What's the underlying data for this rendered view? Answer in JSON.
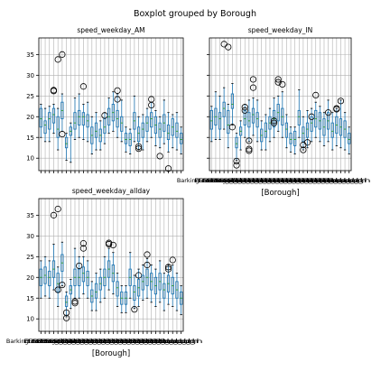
{
  "chart_data": {
    "suptitle": "Boxplot grouped by Borough",
    "type": "boxplot",
    "xlabel": "[Borough]",
    "first_category": "Barking and Dagenham",
    "ylim": [
      7,
      39
    ],
    "yticks": [
      10,
      15,
      20,
      25,
      30,
      35
    ],
    "grid": true,
    "box_color": "#1f77b4",
    "median_color": "#2ca02c",
    "panels": [
      {
        "title": "speed_weekday_AM",
        "show_xlabel": false,
        "boxes": [
          {
            "q1": 17.5,
            "median": 19.5,
            "q3": 22,
            "wlo": 15,
            "whi": 23,
            "fliers": []
          },
          {
            "q1": 16,
            "median": 18,
            "q3": 19,
            "wlo": 14,
            "whi": 22,
            "fliers": []
          },
          {
            "q1": 17,
            "median": 19.5,
            "q3": 21,
            "wlo": 14,
            "whi": 22.5,
            "fliers": []
          },
          {
            "q1": 18.5,
            "median": 20.5,
            "q3": 22,
            "wlo": 16,
            "whi": 23,
            "fliers": [
              26.2,
              26.4
            ]
          },
          {
            "q1": 15,
            "median": 17,
            "q3": 20,
            "wlo": 12,
            "whi": 22,
            "fliers": [
              33.8
            ]
          },
          {
            "q1": 19.5,
            "median": 21.5,
            "q3": 23.5,
            "wlo": 16.5,
            "whi": 25.5,
            "fliers": [
              35,
              15.8
            ]
          },
          {
            "q1": 12.5,
            "median": 13.5,
            "q3": 15,
            "wlo": 9.5,
            "whi": 16,
            "fliers": []
          },
          {
            "q1": 15.5,
            "median": 16.5,
            "q3": 17.5,
            "wlo": 9,
            "whi": 18.5,
            "fliers": []
          },
          {
            "q1": 17,
            "median": 18.5,
            "q3": 21,
            "wlo": 14.5,
            "whi": 24.5,
            "fliers": []
          },
          {
            "q1": 18,
            "median": 20,
            "q3": 21.5,
            "wlo": 15,
            "whi": 25.5,
            "fliers": []
          },
          {
            "q1": 18,
            "median": 20,
            "q3": 21,
            "wlo": 14.5,
            "whi": 23,
            "fliers": [
              27.3
            ]
          },
          {
            "q1": 17.5,
            "median": 19,
            "q3": 20.5,
            "wlo": 14,
            "whi": 23.5,
            "fliers": []
          },
          {
            "q1": 13.5,
            "median": 15.5,
            "q3": 17.5,
            "wlo": 11,
            "whi": 20,
            "fliers": []
          },
          {
            "q1": 15,
            "median": 16.5,
            "q3": 18.5,
            "wlo": 12,
            "whi": 21,
            "fliers": []
          },
          {
            "q1": 14,
            "median": 15.5,
            "q3": 17,
            "wlo": 12,
            "whi": 19,
            "fliers": []
          },
          {
            "q1": 16,
            "median": 17.5,
            "q3": 19.5,
            "wlo": 13.5,
            "whi": 21,
            "fliers": [
              20.3
            ]
          },
          {
            "q1": 18,
            "median": 20,
            "q3": 22,
            "wlo": 16,
            "whi": 24.5,
            "fliers": []
          },
          {
            "q1": 19,
            "median": 21,
            "q3": 23,
            "wlo": 16.5,
            "whi": 26,
            "fliers": []
          },
          {
            "q1": 17.5,
            "median": 19.5,
            "q3": 21.5,
            "wlo": 15,
            "whi": 25.5,
            "fliers": [
              24.2,
              26.3
            ]
          },
          {
            "q1": 16.5,
            "median": 18.5,
            "q3": 20,
            "wlo": 14,
            "whi": 24,
            "fliers": []
          },
          {
            "q1": 13.5,
            "median": 14.5,
            "q3": 16,
            "wlo": 11.5,
            "whi": 17.5,
            "fliers": []
          },
          {
            "q1": 13,
            "median": 14.5,
            "q3": 16,
            "wlo": 11,
            "whi": 17,
            "fliers": []
          },
          {
            "q1": 17,
            "median": 19,
            "q3": 21,
            "wlo": 14,
            "whi": 25,
            "fliers": []
          },
          {
            "q1": 14,
            "median": 16,
            "q3": 17.5,
            "wlo": 12,
            "whi": 20,
            "fliers": [
              12.3,
              12.8
            ]
          },
          {
            "q1": 15,
            "median": 17,
            "q3": 18.5,
            "wlo": 12,
            "whi": 20.5,
            "fliers": []
          },
          {
            "q1": 16.5,
            "median": 18.5,
            "q3": 20,
            "wlo": 14,
            "whi": 22,
            "fliers": []
          },
          {
            "q1": 17.5,
            "median": 19.5,
            "q3": 21,
            "wlo": 15,
            "whi": 23.5,
            "fliers": [
              24.2,
              22.8
            ]
          },
          {
            "q1": 16,
            "median": 18,
            "q3": 20,
            "wlo": 13,
            "whi": 21.5,
            "fliers": []
          },
          {
            "q1": 15,
            "median": 17,
            "q3": 18.5,
            "wlo": 12.5,
            "whi": 20,
            "fliers": [
              10.5
            ]
          },
          {
            "q1": 16.5,
            "median": 18.5,
            "q3": 20.5,
            "wlo": 13.5,
            "whi": 24,
            "fliers": []
          },
          {
            "q1": 14.5,
            "median": 16,
            "q3": 18,
            "wlo": 11.5,
            "whi": 21,
            "fliers": [
              7.5
            ]
          },
          {
            "q1": 15.5,
            "median": 17.5,
            "q3": 19.5,
            "wlo": 12.5,
            "whi": 20.5,
            "fliers": []
          },
          {
            "q1": 15,
            "median": 16.5,
            "q3": 18.5,
            "wlo": 12,
            "whi": 21,
            "fliers": []
          },
          {
            "q1": 13.5,
            "median": 14.5,
            "q3": 16,
            "wlo": 11,
            "whi": 17.5,
            "fliers": []
          }
        ]
      },
      {
        "title": "speed_weekday_IN",
        "show_xlabel": true,
        "boxes": [
          {
            "q1": 17,
            "median": 19,
            "q3": 21.5,
            "wlo": 14,
            "whi": 22.5,
            "fliers": []
          },
          {
            "q1": 18,
            "median": 20,
            "q3": 22,
            "wlo": 14.5,
            "whi": 26,
            "fliers": []
          },
          {
            "q1": 17,
            "median": 19.5,
            "q3": 21,
            "wlo": 14.5,
            "whi": 25,
            "fliers": []
          },
          {
            "q1": 20,
            "median": 22,
            "q3": 23.5,
            "wlo": 17,
            "whi": 27,
            "fliers": [
              37.5
            ]
          },
          {
            "q1": 16,
            "median": 18,
            "q3": 21.5,
            "wlo": 12.5,
            "whi": 23,
            "fliers": [
              36.8
            ]
          },
          {
            "q1": 22,
            "median": 23,
            "q3": 25.5,
            "wlo": 18,
            "whi": 28,
            "fliers": [
              17.5
            ]
          },
          {
            "q1": 12.5,
            "median": 13.5,
            "q3": 15,
            "wlo": 9.5,
            "whi": 16,
            "fliers": [
              9.3,
              8.3
            ]
          },
          {
            "q1": 15.5,
            "median": 16.5,
            "q3": 17.5,
            "wlo": 12,
            "whi": 19,
            "fliers": []
          },
          {
            "q1": 18,
            "median": 19.5,
            "q3": 21.5,
            "wlo": 15,
            "whi": 23,
            "fliers": [
              21.5,
              22.3
            ]
          },
          {
            "q1": 17.5,
            "median": 19,
            "q3": 21,
            "wlo": 14,
            "whi": 24,
            "fliers": [
              12.2,
              11.8,
              14.2
            ]
          },
          {
            "q1": 18.5,
            "median": 20.5,
            "q3": 22,
            "wlo": 15.5,
            "whi": 24.5,
            "fliers": [
              29,
              27
            ]
          },
          {
            "q1": 17.5,
            "median": 19.5,
            "q3": 21,
            "wlo": 14,
            "whi": 24,
            "fliers": []
          },
          {
            "q1": 14,
            "median": 15.5,
            "q3": 17,
            "wlo": 12,
            "whi": 19,
            "fliers": []
          },
          {
            "q1": 15,
            "median": 16.5,
            "q3": 18.5,
            "wlo": 12,
            "whi": 20.5,
            "fliers": []
          },
          {
            "q1": 17,
            "median": 18.5,
            "q3": 20,
            "wlo": 14,
            "whi": 22,
            "fliers": []
          },
          {
            "q1": 17.5,
            "median": 19.5,
            "q3": 21.5,
            "wlo": 15,
            "whi": 24.5,
            "fliers": [
              18.5,
              19
            ]
          },
          {
            "q1": 19,
            "median": 21,
            "q3": 23,
            "wlo": 16.5,
            "whi": 25,
            "fliers": [
              29,
              28.3
            ]
          },
          {
            "q1": 18,
            "median": 20,
            "q3": 22,
            "wlo": 15,
            "whi": 26,
            "fliers": [
              27.8
            ]
          },
          {
            "q1": 15,
            "median": 17,
            "q3": 18.5,
            "wlo": 12.5,
            "whi": 20.5,
            "fliers": []
          },
          {
            "q1": 13.5,
            "median": 14.5,
            "q3": 16,
            "wlo": 11.5,
            "whi": 17.5,
            "fliers": []
          },
          {
            "q1": 13,
            "median": 14.5,
            "q3": 16.5,
            "wlo": 11,
            "whi": 17.5,
            "fliers": []
          },
          {
            "q1": 18,
            "median": 20,
            "q3": 21.5,
            "wlo": 15,
            "whi": 26.5,
            "fliers": []
          },
          {
            "q1": 14,
            "median": 16,
            "q3": 17.5,
            "wlo": 12,
            "whi": 20,
            "fliers": [
              12,
              13.2
            ]
          },
          {
            "q1": 15,
            "median": 17,
            "q3": 18.5,
            "wlo": 12.5,
            "whi": 21.5,
            "fliers": [
              13.8
            ]
          },
          {
            "q1": 16.5,
            "median": 18.5,
            "q3": 20,
            "wlo": 14,
            "whi": 22,
            "fliers": [
              20
            ]
          },
          {
            "q1": 17.5,
            "median": 19.5,
            "q3": 21.5,
            "wlo": 15,
            "whi": 23.5,
            "fliers": [
              25.2
            ]
          },
          {
            "q1": 17,
            "median": 19,
            "q3": 21,
            "wlo": 14,
            "whi": 22.5,
            "fliers": []
          },
          {
            "q1": 15.5,
            "median": 17.5,
            "q3": 19.5,
            "wlo": 13,
            "whi": 21,
            "fliers": []
          },
          {
            "q1": 17,
            "median": 19,
            "q3": 21,
            "wlo": 14,
            "whi": 24,
            "fliers": [
              21
            ]
          },
          {
            "q1": 15,
            "median": 16.5,
            "q3": 18.5,
            "wlo": 12,
            "whi": 21,
            "fliers": []
          },
          {
            "q1": 16,
            "median": 18,
            "q3": 20,
            "wlo": 13,
            "whi": 22,
            "fliers": [
              21.8,
              22
            ]
          },
          {
            "q1": 15.5,
            "median": 17.5,
            "q3": 19.5,
            "wlo": 12.5,
            "whi": 24,
            "fliers": [
              23.8
            ]
          },
          {
            "q1": 15,
            "median": 17,
            "q3": 19,
            "wlo": 12,
            "whi": 21,
            "fliers": []
          },
          {
            "q1": 13.5,
            "median": 14.5,
            "q3": 16,
            "wlo": 11,
            "whi": 17.5,
            "fliers": []
          }
        ]
      },
      {
        "title": "speed_weekday_allday",
        "show_xlabel": true,
        "boxes": [
          {
            "q1": 18,
            "median": 20,
            "q3": 22,
            "wlo": 15,
            "whi": 24,
            "fliers": []
          },
          {
            "q1": 18.5,
            "median": 20.5,
            "q3": 22.5,
            "wlo": 15.5,
            "whi": 25,
            "fliers": []
          },
          {
            "q1": 18,
            "median": 20,
            "q3": 21.5,
            "wlo": 15,
            "whi": 24,
            "fliers": []
          },
          {
            "q1": 20,
            "median": 22,
            "q3": 24,
            "wlo": 17,
            "whi": 28,
            "fliers": [
              35
            ]
          },
          {
            "q1": 16.5,
            "median": 18.5,
            "q3": 21,
            "wlo": 13,
            "whi": 22.5,
            "fliers": [
              36.5,
              17
            ]
          },
          {
            "q1": 21.5,
            "median": 23.5,
            "q3": 25.5,
            "wlo": 18,
            "whi": 28.5,
            "fliers": [
              18.2
            ]
          },
          {
            "q1": 13,
            "median": 14,
            "q3": 15.5,
            "wlo": 10.5,
            "whi": 16.5,
            "fliers": [
              11.5,
              10.2
            ]
          },
          {
            "q1": 16,
            "median": 17,
            "q3": 18,
            "wlo": 12.5,
            "whi": 19.5,
            "fliers": []
          },
          {
            "q1": 18,
            "median": 20,
            "q3": 22,
            "wlo": 15,
            "whi": 27,
            "fliers": [
              13.8,
              14.2
            ]
          },
          {
            "q1": 18,
            "median": 20,
            "q3": 22,
            "wlo": 15,
            "whi": 25,
            "fliers": [
              22.8
            ]
          },
          {
            "q1": 19,
            "median": 21,
            "q3": 22.5,
            "wlo": 16,
            "whi": 25,
            "fliers": [
              28.2,
              27
            ]
          },
          {
            "q1": 18,
            "median": 20,
            "q3": 21.5,
            "wlo": 15,
            "whi": 24,
            "fliers": []
          },
          {
            "q1": 14,
            "median": 15.5,
            "q3": 17,
            "wlo": 12,
            "whi": 19,
            "fliers": []
          },
          {
            "q1": 15,
            "median": 16.5,
            "q3": 18.5,
            "wlo": 12,
            "whi": 21,
            "fliers": []
          },
          {
            "q1": 17,
            "median": 18.5,
            "q3": 20,
            "wlo": 14,
            "whi": 22,
            "fliers": []
          },
          {
            "q1": 18,
            "median": 20,
            "q3": 22,
            "wlo": 15,
            "whi": 25,
            "fliers": []
          },
          {
            "q1": 20,
            "median": 22,
            "q3": 24,
            "wlo": 17,
            "whi": 27,
            "fliers": [
              28.3,
              28
            ]
          },
          {
            "q1": 19,
            "median": 21,
            "q3": 23,
            "wlo": 16,
            "whi": 26,
            "fliers": [
              27.8
            ]
          },
          {
            "q1": 15.5,
            "median": 17.5,
            "q3": 19,
            "wlo": 13,
            "whi": 21,
            "fliers": []
          },
          {
            "q1": 13.5,
            "median": 15,
            "q3": 16.5,
            "wlo": 11.5,
            "whi": 18,
            "fliers": []
          },
          {
            "q1": 13.5,
            "median": 15,
            "q3": 16.5,
            "wlo": 11.5,
            "whi": 18,
            "fliers": []
          },
          {
            "q1": 18,
            "median": 20,
            "q3": 22,
            "wlo": 15,
            "whi": 26,
            "fliers": []
          },
          {
            "q1": 14.5,
            "median": 16.5,
            "q3": 18,
            "wlo": 12.5,
            "whi": 20.5,
            "fliers": [
              12.3
            ]
          },
          {
            "q1": 15.5,
            "median": 17.5,
            "q3": 19.5,
            "wlo": 13,
            "whi": 22,
            "fliers": [
              20.5
            ]
          },
          {
            "q1": 17,
            "median": 19,
            "q3": 20.5,
            "wlo": 14.5,
            "whi": 23,
            "fliers": []
          },
          {
            "q1": 18,
            "median": 20,
            "q3": 22,
            "wlo": 15,
            "whi": 24.5,
            "fliers": [
              25.5,
              23
            ]
          },
          {
            "q1": 17,
            "median": 19,
            "q3": 21,
            "wlo": 14,
            "whi": 23,
            "fliers": []
          },
          {
            "q1": 16,
            "median": 18,
            "q3": 20,
            "wlo": 13,
            "whi": 22,
            "fliers": []
          },
          {
            "q1": 17,
            "median": 19,
            "q3": 21,
            "wlo": 14,
            "whi": 24,
            "fliers": []
          },
          {
            "q1": 15,
            "median": 17,
            "q3": 18.5,
            "wlo": 12,
            "whi": 21,
            "fliers": []
          },
          {
            "q1": 16.5,
            "median": 18.5,
            "q3": 20.5,
            "wlo": 13.5,
            "whi": 23,
            "fliers": [
              22.5,
              22
            ]
          },
          {
            "q1": 16,
            "median": 18,
            "q3": 20,
            "wlo": 13,
            "whi": 23,
            "fliers": [
              24.2
            ]
          },
          {
            "q1": 15,
            "median": 17,
            "q3": 19,
            "wlo": 12,
            "whi": 21,
            "fliers": []
          },
          {
            "q1": 13.5,
            "median": 15,
            "q3": 16.5,
            "wlo": 11,
            "whi": 18,
            "fliers": []
          }
        ]
      }
    ]
  }
}
